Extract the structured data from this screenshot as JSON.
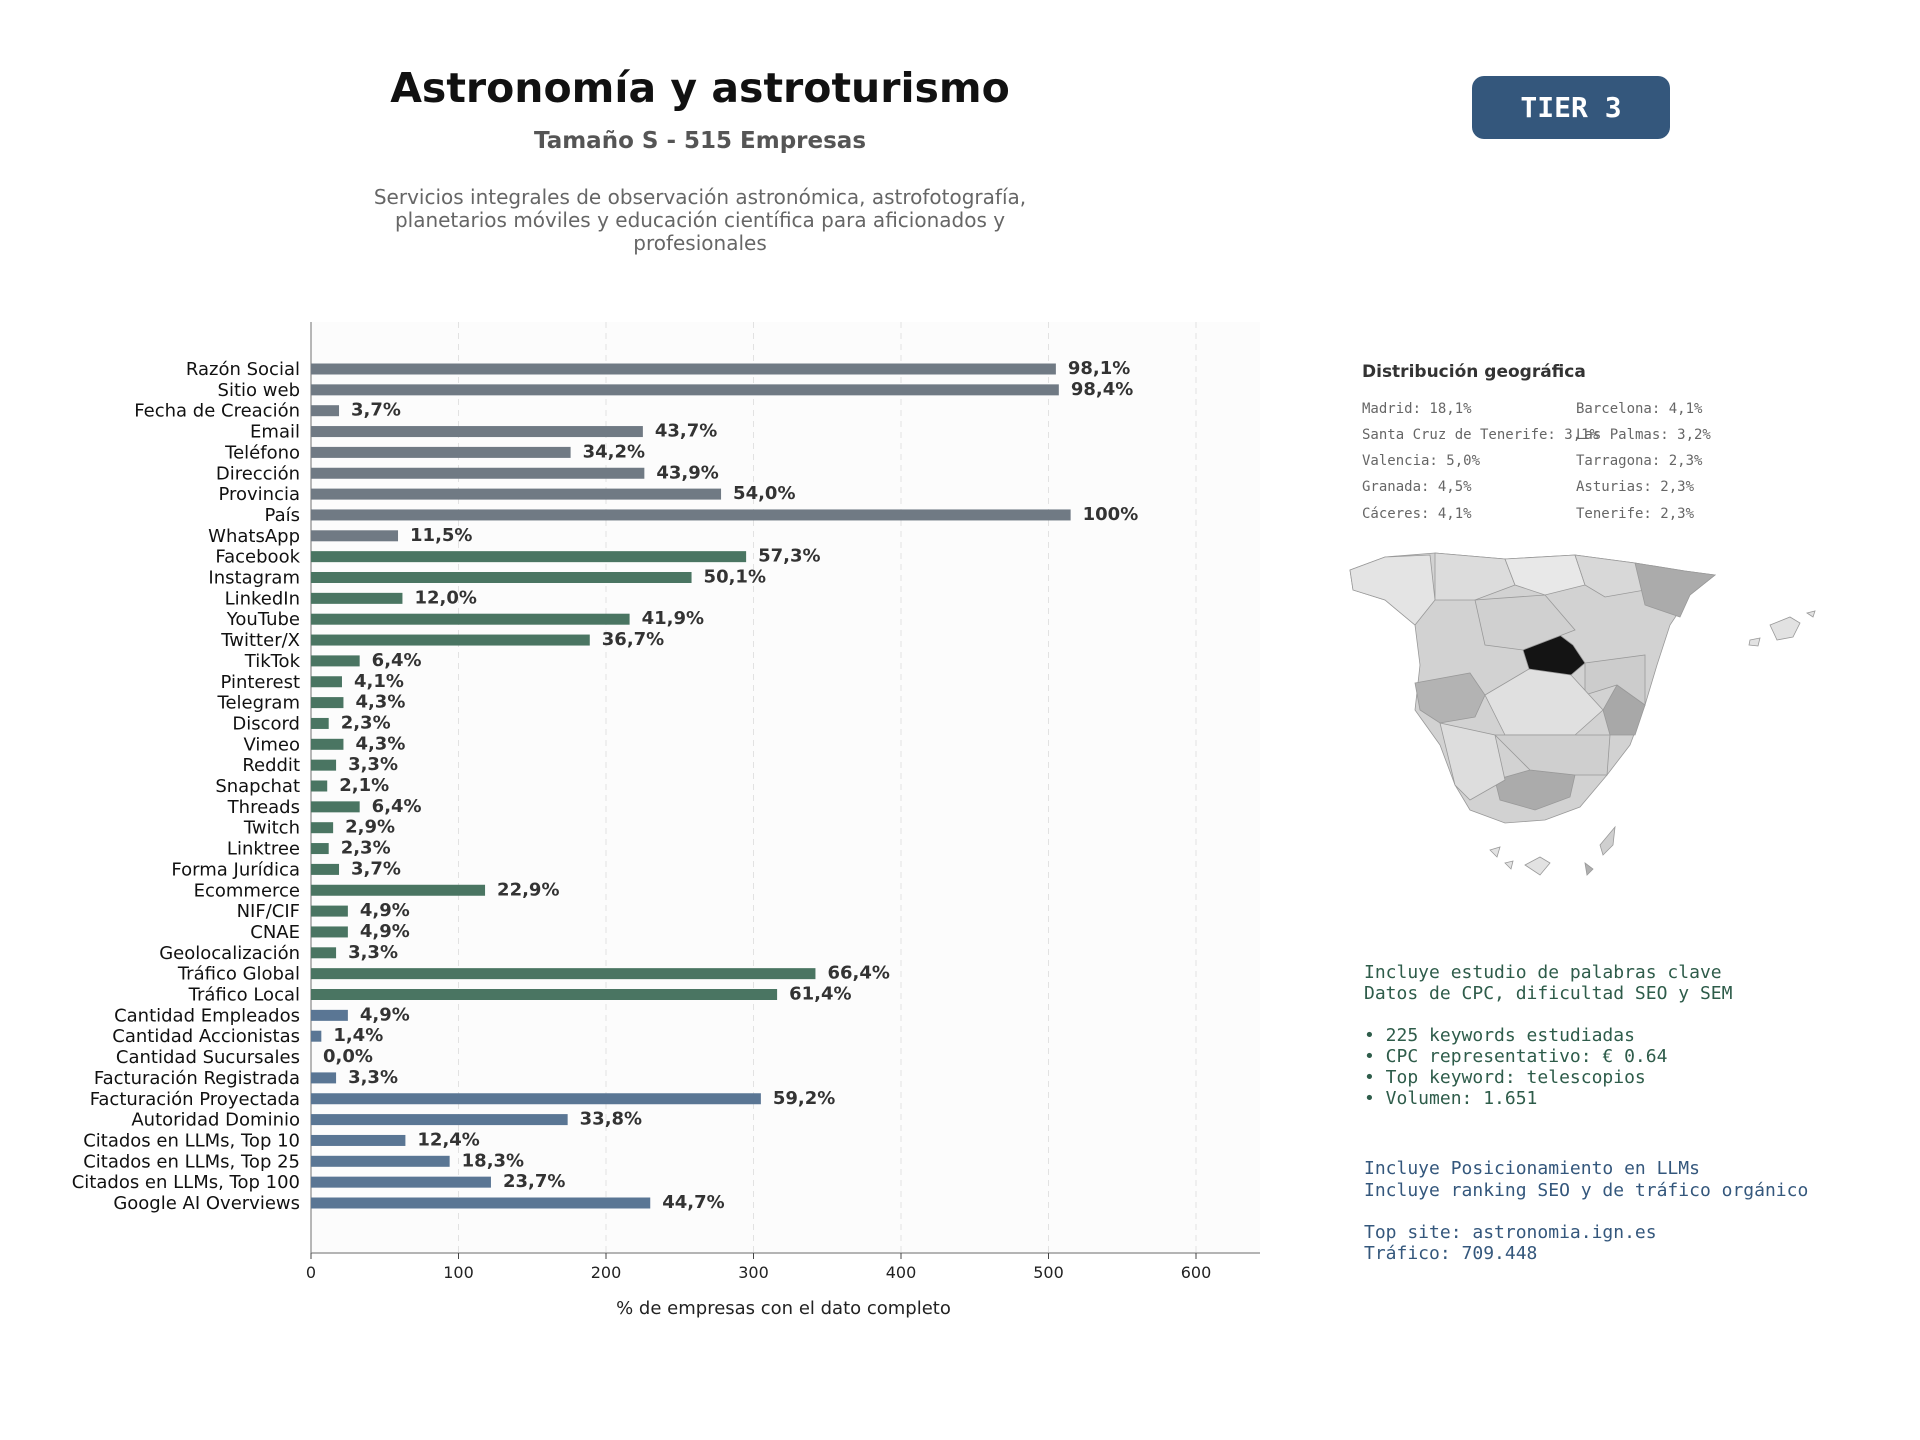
{
  "header": {
    "title": "Astronomía y astroturismo",
    "subtitle": "Tamaño S - 515 Empresas",
    "description": "Servicios integrales de observación astronómica, astrofotografía, planetarios móviles y educación científica para aficionados y profesionales",
    "tier_badge": "TIER 3"
  },
  "chart_data": {
    "type": "bar",
    "orientation": "horizontal",
    "xlabel": "% de empresas con el dato completo",
    "xlim": [
      0,
      640
    ],
    "xticks": [
      0,
      100,
      200,
      300,
      400,
      500,
      600
    ],
    "grid": "vertical dashed",
    "categories": [
      "Razón Social",
      "Sitio web",
      "Fecha de Creación",
      "Email",
      "Teléfono",
      "Dirección",
      "Provincia",
      "País",
      "WhatsApp",
      "Facebook",
      "Instagram",
      "LinkedIn",
      "YouTube",
      "Twitter/X",
      "TikTok",
      "Pinterest",
      "Telegram",
      "Discord",
      "Vimeo",
      "Reddit",
      "Snapchat",
      "Threads",
      "Twitch",
      "Linktree",
      "Forma Jurídica",
      "Ecommerce",
      "NIF/CIF",
      "CNAE",
      "Geolocalización",
      "Tráfico Global",
      "Tráfico Local",
      "Cantidad Empleados",
      "Cantidad Accionistas",
      "Cantidad Sucursales",
      "Facturación Registrada",
      "Facturación Proyectada",
      "Autoridad Dominio",
      "Citados en LLMs, Top 10",
      "Citados en LLMs, Top 25",
      "Citados en LLMs, Top 100",
      "Google AI Overviews"
    ],
    "values": [
      505,
      507,
      19,
      225,
      176,
      226,
      278,
      515,
      59,
      295,
      258,
      62,
      216,
      189,
      33,
      21,
      22,
      12,
      22,
      17,
      11,
      33,
      15,
      12,
      19,
      118,
      25,
      25,
      17,
      342,
      316,
      25,
      7,
      0,
      17,
      305,
      174,
      64,
      94,
      122,
      230
    ],
    "labels": [
      "98,1%",
      "98,4%",
      "3,7%",
      "43,7%",
      "34,2%",
      "43,9%",
      "54,0%",
      "100%",
      "11,5%",
      "57,3%",
      "50,1%",
      "12,0%",
      "41,9%",
      "36,7%",
      "6,4%",
      "4,1%",
      "4,3%",
      "2,3%",
      "4,3%",
      "3,3%",
      "2,1%",
      "6,4%",
      "2,9%",
      "2,3%",
      "3,7%",
      "22,9%",
      "4,9%",
      "4,9%",
      "3,3%",
      "66,4%",
      "61,4%",
      "4,9%",
      "1,4%",
      "0,0%",
      "3,3%",
      "59,2%",
      "33,8%",
      "12,4%",
      "18,3%",
      "23,7%",
      "44,7%"
    ],
    "groups": [
      "gray",
      "gray",
      "gray",
      "gray",
      "gray",
      "gray",
      "gray",
      "gray",
      "gray",
      "green",
      "green",
      "green",
      "green",
      "green",
      "green",
      "green",
      "green",
      "green",
      "green",
      "green",
      "green",
      "green",
      "green",
      "green",
      "green",
      "green",
      "green",
      "green",
      "green",
      "green",
      "green",
      "blue",
      "blue",
      "blue",
      "blue",
      "blue",
      "blue",
      "blue",
      "blue",
      "blue",
      "blue"
    ]
  },
  "colors": {
    "gray": "#707a84",
    "green": "#4a7562",
    "blue": "#5a7694",
    "map_highlight": "#1a1a1a"
  },
  "geo": {
    "title": "Distribución geográfica",
    "items": [
      "Madrid: 18,1%",
      "Barcelona: 4,1%",
      "Santa Cruz de Tenerife: 3,1%",
      "Las Palmas: 3,2%",
      "Valencia: 5,0%",
      "Tarragona: 2,3%",
      "Granada: 4,5%",
      "Asturias: 2,3%",
      "Cáceres: 4,1%",
      "Tenerife: 2,3%"
    ]
  },
  "keywords": {
    "line1": "Incluye estudio de palabras clave",
    "line2": "Datos de CPC, dificultad SEO y SEM",
    "b1": "• 225 keywords estudiadas",
    "b2": "• CPC representativo: € 0.64",
    "b3": "• Top keyword: telescopios",
    "b4": "• Volumen: 1.651"
  },
  "llm": {
    "line1": "Incluye Posicionamiento en LLMs",
    "line2": "Incluye ranking SEO y de tráfico orgánico",
    "site": "Top site: astronomia.ign.es",
    "traffic": "Tráfico: 709.448"
  }
}
